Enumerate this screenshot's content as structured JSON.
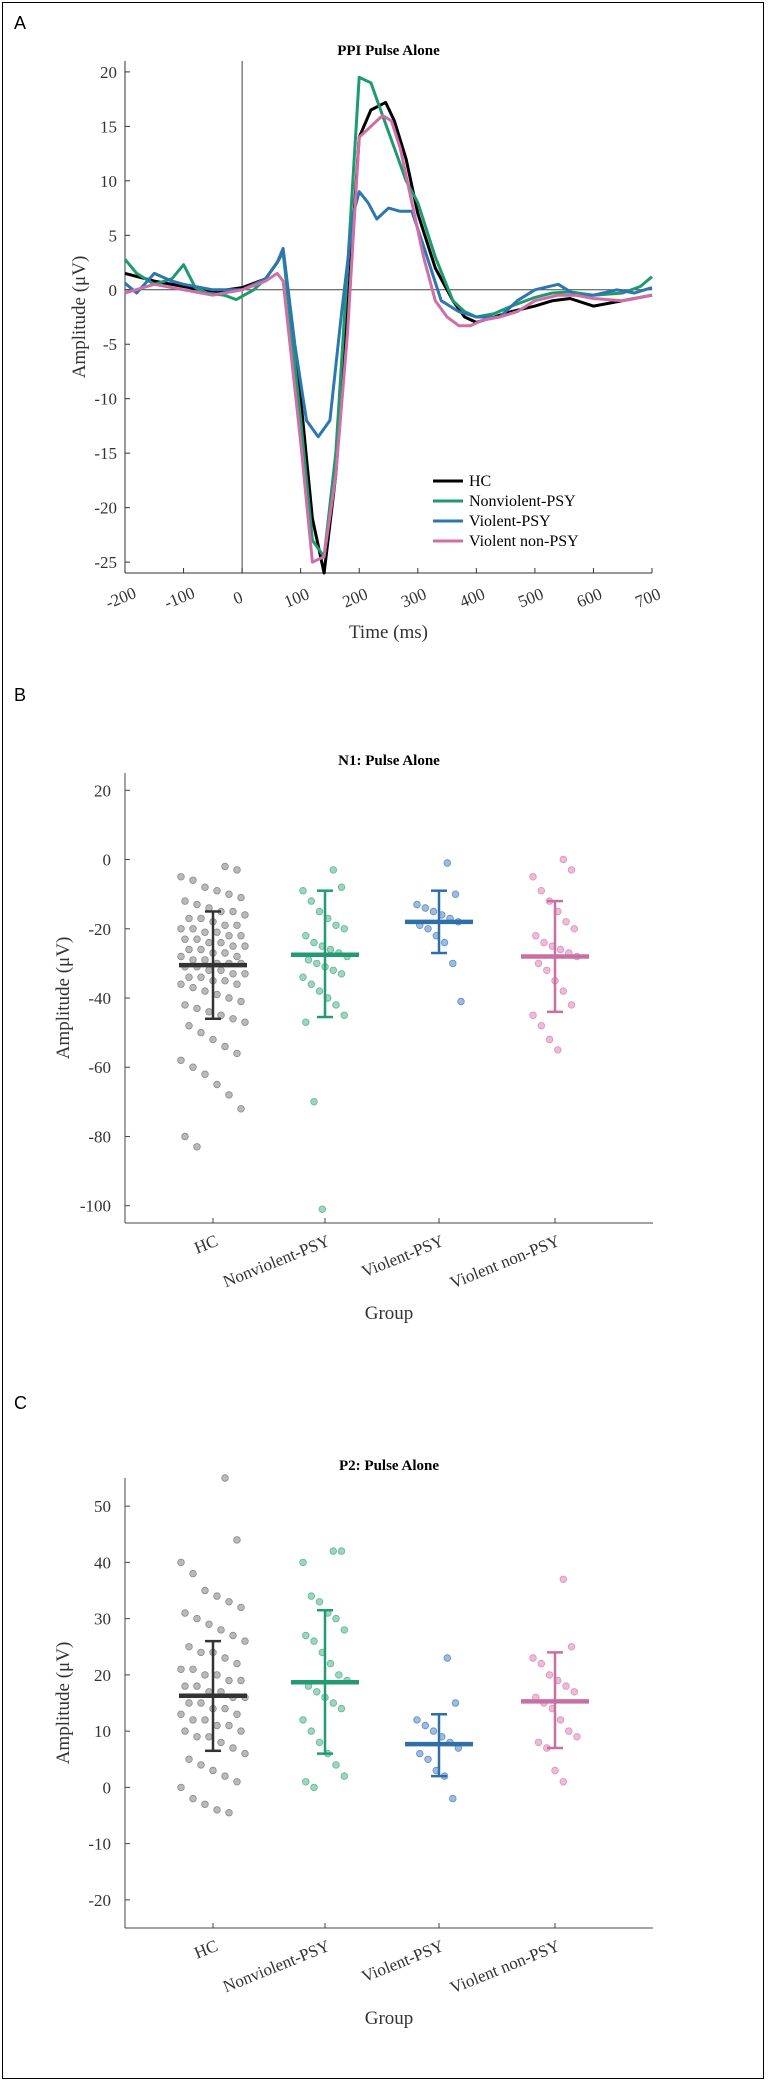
{
  "chart_data": [
    {
      "panel_label": "A",
      "type": "line",
      "title": "PPI Pulse Alone",
      "xlabel": "Time (ms)",
      "ylabel": "Amplitude (μV)",
      "xlim": [
        -200,
        700
      ],
      "ylim": [
        -26,
        21
      ],
      "xticks": [
        -200,
        -100,
        0,
        100,
        200,
        300,
        400,
        500,
        600,
        700
      ],
      "yticks": [
        20,
        15,
        10,
        5,
        0,
        -5,
        -10,
        -15,
        -20,
        -25
      ],
      "legend_position": "bottom-right",
      "series": [
        {
          "name": "HC",
          "color": "#000000",
          "x": [
            -200,
            -150,
            -100,
            -50,
            0,
            40,
            60,
            70,
            100,
            120,
            140,
            160,
            180,
            200,
            220,
            245,
            260,
            280,
            300,
            330,
            360,
            380,
            400,
            430,
            460,
            500,
            530,
            560,
            600,
            650,
            700
          ],
          "y": [
            1.5,
            0.8,
            0.3,
            -0.2,
            0.2,
            1.0,
            2.5,
            3.5,
            -10,
            -21,
            -26,
            -17,
            -2,
            14,
            16.5,
            17.2,
            15.5,
            12,
            7,
            2,
            -1,
            -2.5,
            -3,
            -2.5,
            -2,
            -1.5,
            -1,
            -0.8,
            -1.5,
            -1,
            -0.5
          ]
        },
        {
          "name": "Nonviolent-PSY",
          "color": "#1f9a6e",
          "x": [
            -200,
            -180,
            -150,
            -120,
            -100,
            -80,
            -60,
            -30,
            -10,
            0,
            20,
            40,
            60,
            70,
            100,
            120,
            140,
            160,
            180,
            200,
            220,
            240,
            260,
            280,
            300,
            330,
            360,
            380,
            400,
            430,
            460,
            500,
            530,
            560,
            600,
            650,
            680,
            700
          ],
          "y": [
            2.8,
            1.5,
            0.5,
            1.0,
            2.3,
            0.2,
            -0.3,
            -0.5,
            -0.9,
            -0.6,
            0,
            1.0,
            2.5,
            3.5,
            -12,
            -23,
            -24.5,
            -15,
            2,
            19.5,
            19,
            16,
            13,
            10,
            8,
            3,
            -1,
            -2,
            -2.5,
            -2.2,
            -1.5,
            -0.7,
            -0.3,
            -0.2,
            -0.5,
            -0.3,
            0.3,
            1.2
          ]
        },
        {
          "name": "Violent-PSY",
          "color": "#2e76b0",
          "x": [
            -200,
            -180,
            -150,
            -120,
            -100,
            -50,
            0,
            40,
            60,
            70,
            90,
            110,
            130,
            150,
            170,
            190,
            200,
            215,
            230,
            250,
            270,
            290,
            310,
            340,
            370,
            400,
            440,
            470,
            500,
            540,
            570,
            600,
            640,
            670,
            700
          ],
          "y": [
            0.6,
            -0.3,
            1.5,
            0.8,
            0.5,
            0,
            0,
            1.0,
            2.5,
            3.8,
            -5,
            -12,
            -13.5,
            -12,
            -2,
            7,
            9,
            8,
            6.5,
            7.5,
            7.2,
            7.2,
            4,
            -1,
            -2,
            -2.5,
            -2.5,
            -1,
            0,
            0.5,
            -0.5,
            -0.5,
            0,
            -0.3,
            0.2
          ]
        },
        {
          "name": "Violent non-PSY",
          "color": "#cf6fa8",
          "x": [
            -200,
            -150,
            -100,
            -50,
            0,
            40,
            60,
            70,
            100,
            120,
            140,
            160,
            180,
            200,
            220,
            240,
            255,
            270,
            290,
            310,
            330,
            350,
            370,
            390,
            410,
            440,
            470,
            500,
            540,
            570,
            600,
            650,
            700
          ],
          "y": [
            -0.3,
            0.5,
            0,
            -0.5,
            0,
            0.8,
            1.5,
            0.8,
            -14,
            -25,
            -24.5,
            -17,
            -4,
            14,
            15,
            16,
            15.5,
            13,
            8,
            3,
            -1,
            -2.5,
            -3.3,
            -3.3,
            -2.8,
            -2.5,
            -2,
            -1,
            -0.5,
            -0.5,
            -0.8,
            -1,
            -0.5
          ]
        }
      ]
    },
    {
      "panel_label": "B",
      "type": "scatter",
      "title": "N1: Pulse Alone",
      "xlabel": "Group",
      "ylabel": "Amplitude (μV)",
      "categories": [
        "HC",
        "Nonviolent-PSY",
        "Violent-PSY",
        "Violent non-PSY"
      ],
      "ylim": [
        -105,
        25
      ],
      "yticks": [
        20,
        0,
        -20,
        -40,
        -60,
        -80,
        -100
      ],
      "colors": [
        "#333333",
        "#239a72",
        "#2e6faa",
        "#c870a4"
      ],
      "point_colors": [
        "#8a8a8a",
        "#5fb892",
        "#5f8ec6",
        "#dd8fbd"
      ],
      "means": [
        -30.5,
        -27.5,
        -18,
        -28
      ],
      "sd_low": [
        -46,
        -45.5,
        -27,
        -44
      ],
      "sd_high": [
        -15,
        -9,
        -9,
        -12
      ],
      "points": [
        [
          -2,
          -3,
          -5,
          -6,
          -8,
          -9,
          -10,
          -11,
          -12,
          -13,
          -14,
          -15,
          -15,
          -16,
          -17,
          -17,
          -18,
          -19,
          -19,
          -20,
          -20,
          -21,
          -21,
          -22,
          -22,
          -23,
          -23,
          -24,
          -24,
          -25,
          -25,
          -26,
          -26,
          -27,
          -27,
          -28,
          -28,
          -29,
          -29,
          -30,
          -30,
          -30,
          -31,
          -31,
          -32,
          -32,
          -33,
          -33,
          -34,
          -34,
          -35,
          -35,
          -36,
          -36,
          -37,
          -38,
          -39,
          -40,
          -41,
          -42,
          -43,
          -44,
          -45,
          -46,
          -47,
          -48,
          -50,
          -52,
          -54,
          -56,
          -58,
          -60,
          -62,
          -65,
          -68,
          -72,
          -80,
          -83
        ],
        [
          -3,
          -8,
          -9,
          -12,
          -15,
          -17,
          -19,
          -20,
          -22,
          -24,
          -25,
          -26,
          -27,
          -28,
          -29,
          -30,
          -31,
          -32,
          -33,
          -34,
          -36,
          -38,
          -40,
          -42,
          -45,
          -47,
          -70,
          -101
        ],
        [
          -1,
          -10,
          -13,
          -14,
          -15,
          -16,
          -17,
          -18,
          -19,
          -20,
          -22,
          -24,
          -30,
          -41
        ],
        [
          0,
          -3,
          -5,
          -9,
          -12,
          -15,
          -18,
          -20,
          -22,
          -24,
          -25,
          -26,
          -27,
          -28,
          -30,
          -32,
          -35,
          -38,
          -42,
          -45,
          -48,
          -52,
          -55
        ]
      ]
    },
    {
      "panel_label": "C",
      "type": "scatter",
      "title": "P2: Pulse Alone",
      "xlabel": "Group",
      "ylabel": "Amplitude (μV)",
      "categories": [
        "HC",
        "Nonviolent-PSY",
        "Violent-PSY",
        "Violent non-PSY"
      ],
      "ylim": [
        -25,
        55
      ],
      "yticks": [
        50,
        40,
        30,
        20,
        10,
        0,
        -10,
        -20
      ],
      "colors": [
        "#333333",
        "#239a72",
        "#2e6faa",
        "#c870a4"
      ],
      "point_colors": [
        "#8a8a8a",
        "#5fb892",
        "#5f8ec6",
        "#dd8fbd"
      ],
      "means": [
        16.3,
        18.7,
        7.7,
        15.3
      ],
      "sd_low": [
        6.5,
        6,
        2,
        7
      ],
      "sd_high": [
        26,
        31.5,
        13,
        24
      ],
      "points": [
        [
          55,
          44,
          40,
          38,
          35,
          34,
          33,
          32,
          31,
          30,
          29,
          28,
          27,
          26,
          25,
          24,
          24,
          23,
          22,
          21,
          21,
          20,
          20,
          19,
          19,
          18,
          18,
          17,
          17,
          16,
          16,
          15,
          15,
          14,
          14,
          13,
          13,
          12,
          12,
          11,
          11,
          10,
          10,
          9,
          9,
          8,
          7,
          6,
          5,
          4,
          3,
          2,
          1,
          0,
          -2,
          -3,
          -4,
          -4.5
        ],
        [
          42,
          42,
          40,
          34,
          33,
          31,
          30,
          28,
          27,
          26,
          24,
          22,
          20,
          19,
          18,
          17,
          16,
          15,
          14,
          12,
          10,
          8,
          6,
          4,
          2,
          1,
          0
        ],
        [
          23,
          15,
          12,
          11,
          10,
          9,
          8,
          7,
          6,
          5,
          3,
          2,
          -2
        ],
        [
          37,
          25,
          23,
          22,
          20,
          19,
          18,
          17,
          16,
          15,
          14,
          12,
          10,
          9,
          8,
          7,
          3,
          1
        ]
      ]
    }
  ]
}
